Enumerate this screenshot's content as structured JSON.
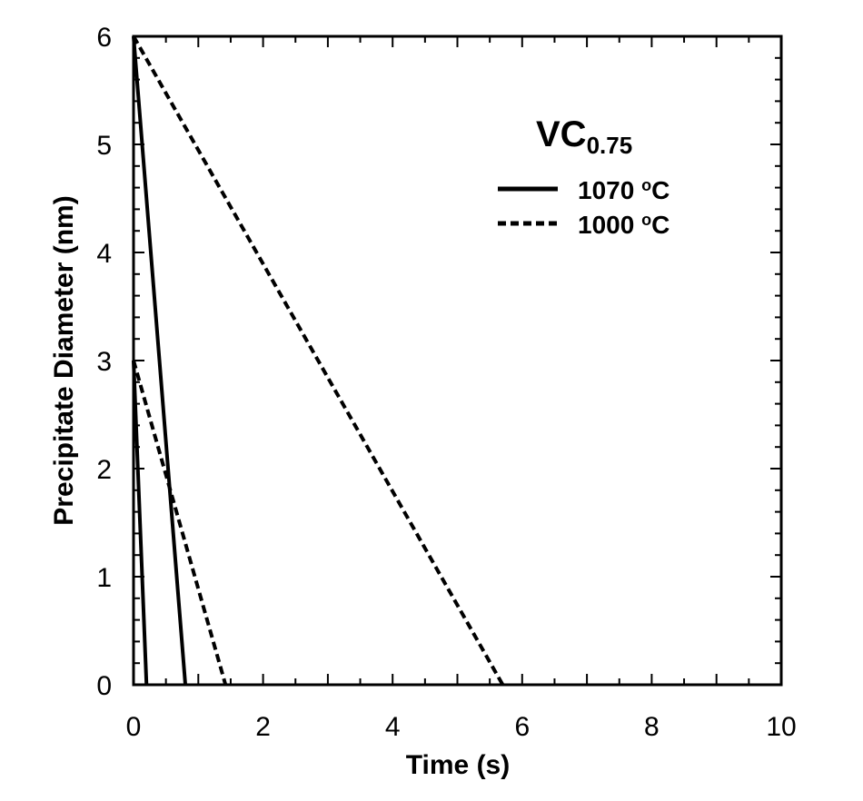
{
  "chart_data": {
    "type": "line",
    "title": "",
    "xlabel": "Time (s)",
    "ylabel": "Precipitate Diameter (nm)",
    "xlim": [
      0,
      10
    ],
    "ylim": [
      0,
      6
    ],
    "x_ticks": [
      "0",
      "2",
      "4",
      "6",
      "8",
      "10"
    ],
    "y_ticks": [
      "0",
      "1",
      "2",
      "3",
      "4",
      "5",
      "6"
    ],
    "grid": false,
    "legend_position": "top-right",
    "legend": {
      "title_main": "VC",
      "title_sub": "0.75",
      "entries": [
        {
          "label_value": "1070 ",
          "label_deg": "o",
          "label_unit": "C",
          "style": "solid"
        },
        {
          "label_value": "1000 ",
          "label_deg": "o",
          "label_unit": "C",
          "style": "dashed"
        }
      ]
    },
    "series": [
      {
        "name": "1070 °C, d0 = 6 nm",
        "style": "solid",
        "x": [
          0,
          0.8
        ],
        "y": [
          6,
          0
        ]
      },
      {
        "name": "1070 °C, d0 = 3 nm",
        "style": "solid",
        "x": [
          0,
          0.2
        ],
        "y": [
          3,
          0
        ]
      },
      {
        "name": "1000 °C, d0 = 6 nm",
        "style": "dashed",
        "x": [
          0,
          5.7
        ],
        "y": [
          6,
          0
        ]
      },
      {
        "name": "1000 °C, d0 = 3 nm",
        "style": "dashed",
        "x": [
          0,
          1.42
        ],
        "y": [
          3,
          0
        ]
      }
    ]
  }
}
